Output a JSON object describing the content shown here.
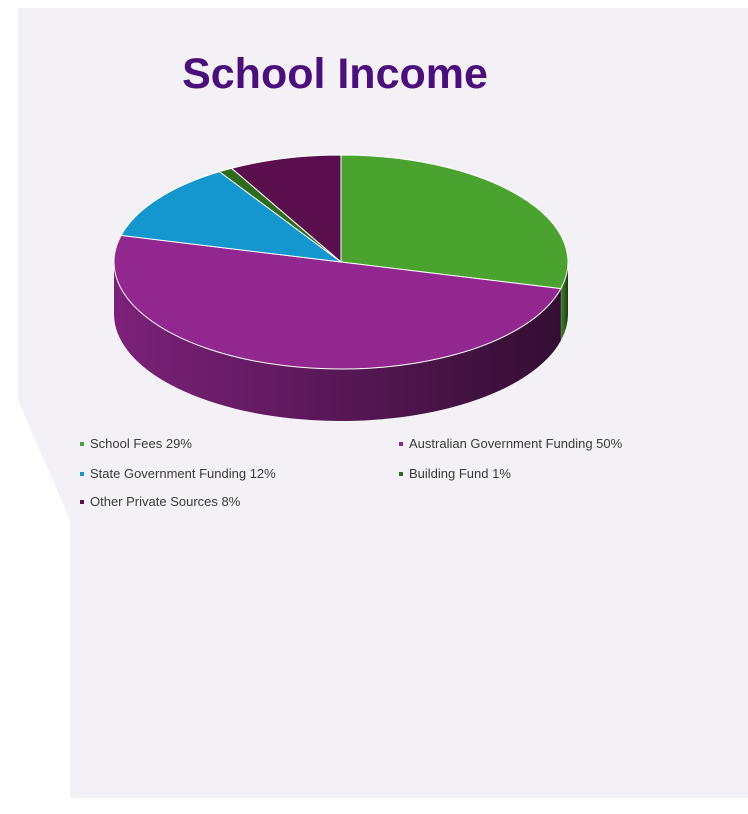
{
  "slide": {
    "title": "School Income"
  },
  "chart_data": {
    "type": "pie",
    "title": "School Income",
    "categories": [
      "School Fees",
      "Australian Government Funding",
      "State Government Funding",
      "Building Fund",
      "Other Private Sources"
    ],
    "values": [
      29,
      50,
      12,
      1,
      8
    ],
    "series": [
      {
        "name": "School Fees",
        "value": 29,
        "color": "#4aa32e"
      },
      {
        "name": "Australian Government Funding",
        "value": 50,
        "color": "#92278f"
      },
      {
        "name": "State Government Funding",
        "value": 12,
        "color": "#1496cf"
      },
      {
        "name": "Building Fund",
        "value": 1,
        "color": "#2e6b1a"
      },
      {
        "name": "Other Private Sources",
        "value": 8,
        "color": "#5a0e4e"
      }
    ],
    "style": "3d",
    "legend_position": "bottom"
  },
  "legend": [
    {
      "label": "School Fees 29%"
    },
    {
      "label": "Australian Government Funding 50%"
    },
    {
      "label": "State Government Funding 12%"
    },
    {
      "label": "Building Fund 1%"
    },
    {
      "label": "Other Private Sources 8%"
    }
  ],
  "colors": {
    "title": "#4b0f7d",
    "slide_bg": "#f3f1f5",
    "outer_bg": "#ffffff"
  }
}
